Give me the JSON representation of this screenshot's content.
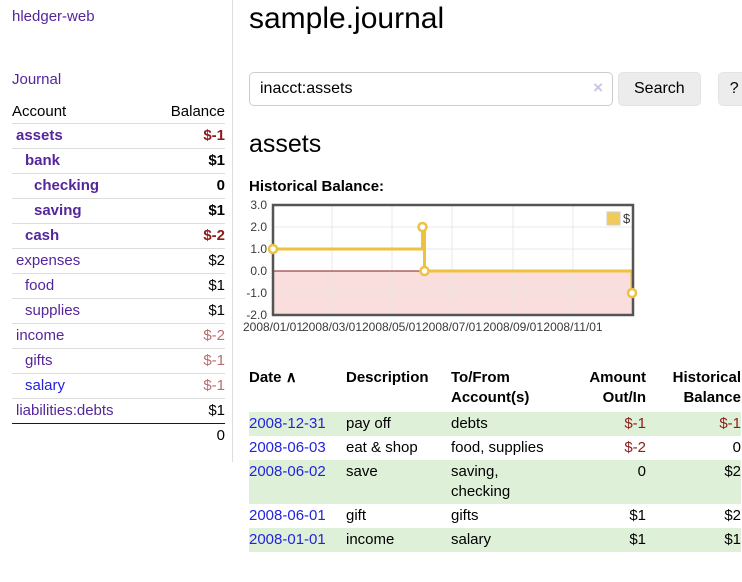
{
  "sidebar": {
    "brand": "hledger-web",
    "nav_journal": "Journal",
    "accounts": {
      "col_account": "Account",
      "col_balance": "Balance",
      "rows": [
        {
          "label": "assets",
          "depth": 1,
          "bold": true,
          "label_color": "purple",
          "balance": "$-1",
          "balance_color": "neg-strong"
        },
        {
          "label": "bank",
          "depth": 2,
          "bold": true,
          "label_color": "purple",
          "balance": "$1",
          "balance_color": "plain"
        },
        {
          "label": "checking",
          "depth": 3,
          "bold": true,
          "label_color": "purple",
          "balance": "0",
          "balance_color": "plain"
        },
        {
          "label": "saving",
          "depth": 3,
          "bold": true,
          "label_color": "purple",
          "balance": "$1",
          "balance_color": "plain"
        },
        {
          "label": "cash",
          "depth": 2,
          "bold": true,
          "label_color": "purple",
          "balance": "$-2",
          "balance_color": "neg-strong"
        },
        {
          "label": "expenses",
          "depth": 1,
          "bold": false,
          "label_color": "purple",
          "balance": "$2",
          "balance_color": "plain"
        },
        {
          "label": "food",
          "depth": 2,
          "bold": false,
          "label_color": "purple",
          "balance": "$1",
          "balance_color": "plain"
        },
        {
          "label": "supplies",
          "depth": 2,
          "bold": false,
          "label_color": "purple",
          "balance": "$1",
          "balance_color": "plain"
        },
        {
          "label": "income",
          "depth": 1,
          "bold": false,
          "label_color": "purple",
          "balance": "$-2",
          "balance_color": "neg-muted"
        },
        {
          "label": "gifts",
          "depth": 2,
          "bold": false,
          "label_color": "purple",
          "balance": "$-1",
          "balance_color": "neg-muted"
        },
        {
          "label": "salary",
          "depth": 2,
          "bold": false,
          "label_color": "blue",
          "balance": "$-1",
          "balance_color": "neg-muted"
        },
        {
          "label": "liabilities:debts",
          "depth": 1,
          "bold": false,
          "label_color": "purple",
          "balance": "$1",
          "balance_color": "plain"
        }
      ],
      "total": "0"
    }
  },
  "header": {
    "title": "sample.journal"
  },
  "search": {
    "value": "inacct:assets",
    "clear_icon": "×",
    "button": "Search",
    "help": "?"
  },
  "account_page": {
    "heading": "assets",
    "chart_title": "Historical Balance:"
  },
  "chart_data": {
    "type": "line",
    "title": "Historical Balance:",
    "series": [
      {
        "name": "$",
        "color": "#edc240",
        "step": true,
        "points": [
          [
            "2008-01-01",
            1
          ],
          [
            "2008-06-01",
            2
          ],
          [
            "2008-06-03",
            0
          ],
          [
            "2008-12-31",
            -1
          ]
        ]
      }
    ],
    "x_range": [
      "2008-01-01",
      "2009-01-01"
    ],
    "x_ticks": [
      "2008/01/01",
      "2008/03/01",
      "2008/05/01",
      "2008/07/01",
      "2008/09/01",
      "2008/11/01"
    ],
    "y_ticks": [
      3.0,
      2.0,
      1.0,
      0.0,
      -1.0,
      -2.0
    ],
    "ylim": [
      -2,
      3
    ],
    "grid": true,
    "legend_position": "top-right",
    "negative_region_color": "#fadddd",
    "zero_line_color": "#8b1a1a",
    "border_color": "#545454",
    "grid_color": "#e8e8e8"
  },
  "register": {
    "columns": {
      "date": "Date",
      "sort_icon": "∧",
      "description": "Description",
      "accounts": "To/From Account(s)",
      "amount": "Amount Out/In",
      "balance": "Historical Balance"
    },
    "rows": [
      {
        "date": "2008-12-31",
        "description": "pay off",
        "accounts": "debts",
        "amount": "$-1",
        "amount_color": "neg",
        "balance": "$-1",
        "balance_color": "neg",
        "shaded": true
      },
      {
        "date": "2008-06-03",
        "description": "eat & shop",
        "accounts": "food, supplies",
        "amount": "$-2",
        "amount_color": "neg",
        "balance": "0",
        "balance_color": "plain",
        "shaded": false
      },
      {
        "date": "2008-06-02",
        "description": "save",
        "accounts": "saving, checking",
        "amount": "0",
        "amount_color": "plain",
        "balance": "$2",
        "balance_color": "plain",
        "shaded": true
      },
      {
        "date": "2008-06-01",
        "description": "gift",
        "accounts": "gifts",
        "amount": "$1",
        "amount_color": "plain",
        "balance": "$2",
        "balance_color": "plain",
        "shaded": false
      },
      {
        "date": "2008-01-01",
        "description": "income",
        "accounts": "salary",
        "amount": "$1",
        "amount_color": "plain",
        "balance": "$1",
        "balance_color": "plain",
        "shaded": true
      }
    ]
  }
}
